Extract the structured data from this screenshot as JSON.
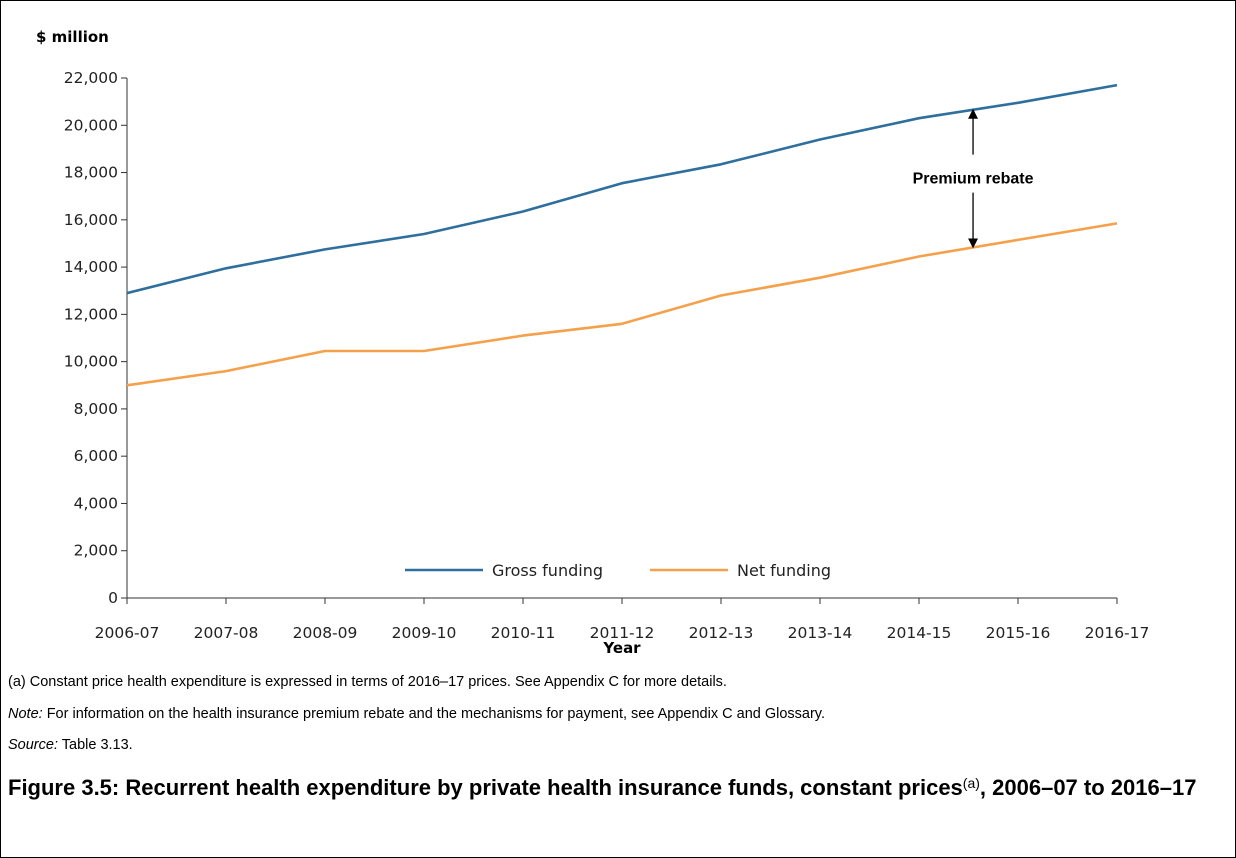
{
  "chart_data": {
    "type": "line",
    "ylabel": "$ million",
    "xlabel": "Year",
    "ylim": [
      0,
      22000
    ],
    "yticks": [
      0,
      2000,
      4000,
      6000,
      8000,
      10000,
      12000,
      14000,
      16000,
      18000,
      20000,
      22000
    ],
    "ytick_labels": [
      "0",
      "2,000",
      "4,000",
      "6,000",
      "8,000",
      "10,000",
      "12,000",
      "14,000",
      "16,000",
      "18,000",
      "20,000",
      "22,000"
    ],
    "categories": [
      "2006-07",
      "2007-08",
      "2008-09",
      "2009-10",
      "2010-11",
      "2011-12",
      "2012-13",
      "2013-14",
      "2014-15",
      "2015-16",
      "2016-17"
    ],
    "series": [
      {
        "name": "Gross funding",
        "color": "#2e6f9e",
        "values": [
          12900,
          13950,
          14750,
          15400,
          16350,
          17550,
          18350,
          19400,
          20300,
          20950,
          21700
        ]
      },
      {
        "name": "Net funding",
        "color": "#f5a04a",
        "values": [
          9000,
          9600,
          10450,
          10450,
          11100,
          11600,
          12800,
          13550,
          14450,
          15150,
          15850
        ]
      }
    ],
    "annotation": {
      "text": "Premium rebate",
      "category": "2015-16"
    },
    "grid": false,
    "legend": "bottom-center"
  },
  "notes": {
    "a": "(a)   Constant price health expenditure is expressed in terms of 2016–17 prices. See Appendix C for more details.",
    "note_label": "Note:",
    "note_text": " For information on the health insurance premium rebate and the mechanisms for payment, see Appendix C and Glossary.",
    "source_label": "Source:",
    "source_text": " Table 3.13."
  },
  "figure": {
    "title_main": "Figure 3.5: Recurrent health expenditure by private health insurance funds, constant prices",
    "title_sup": "(a)",
    "title_tail": ", 2006–07 to 2016–17"
  }
}
